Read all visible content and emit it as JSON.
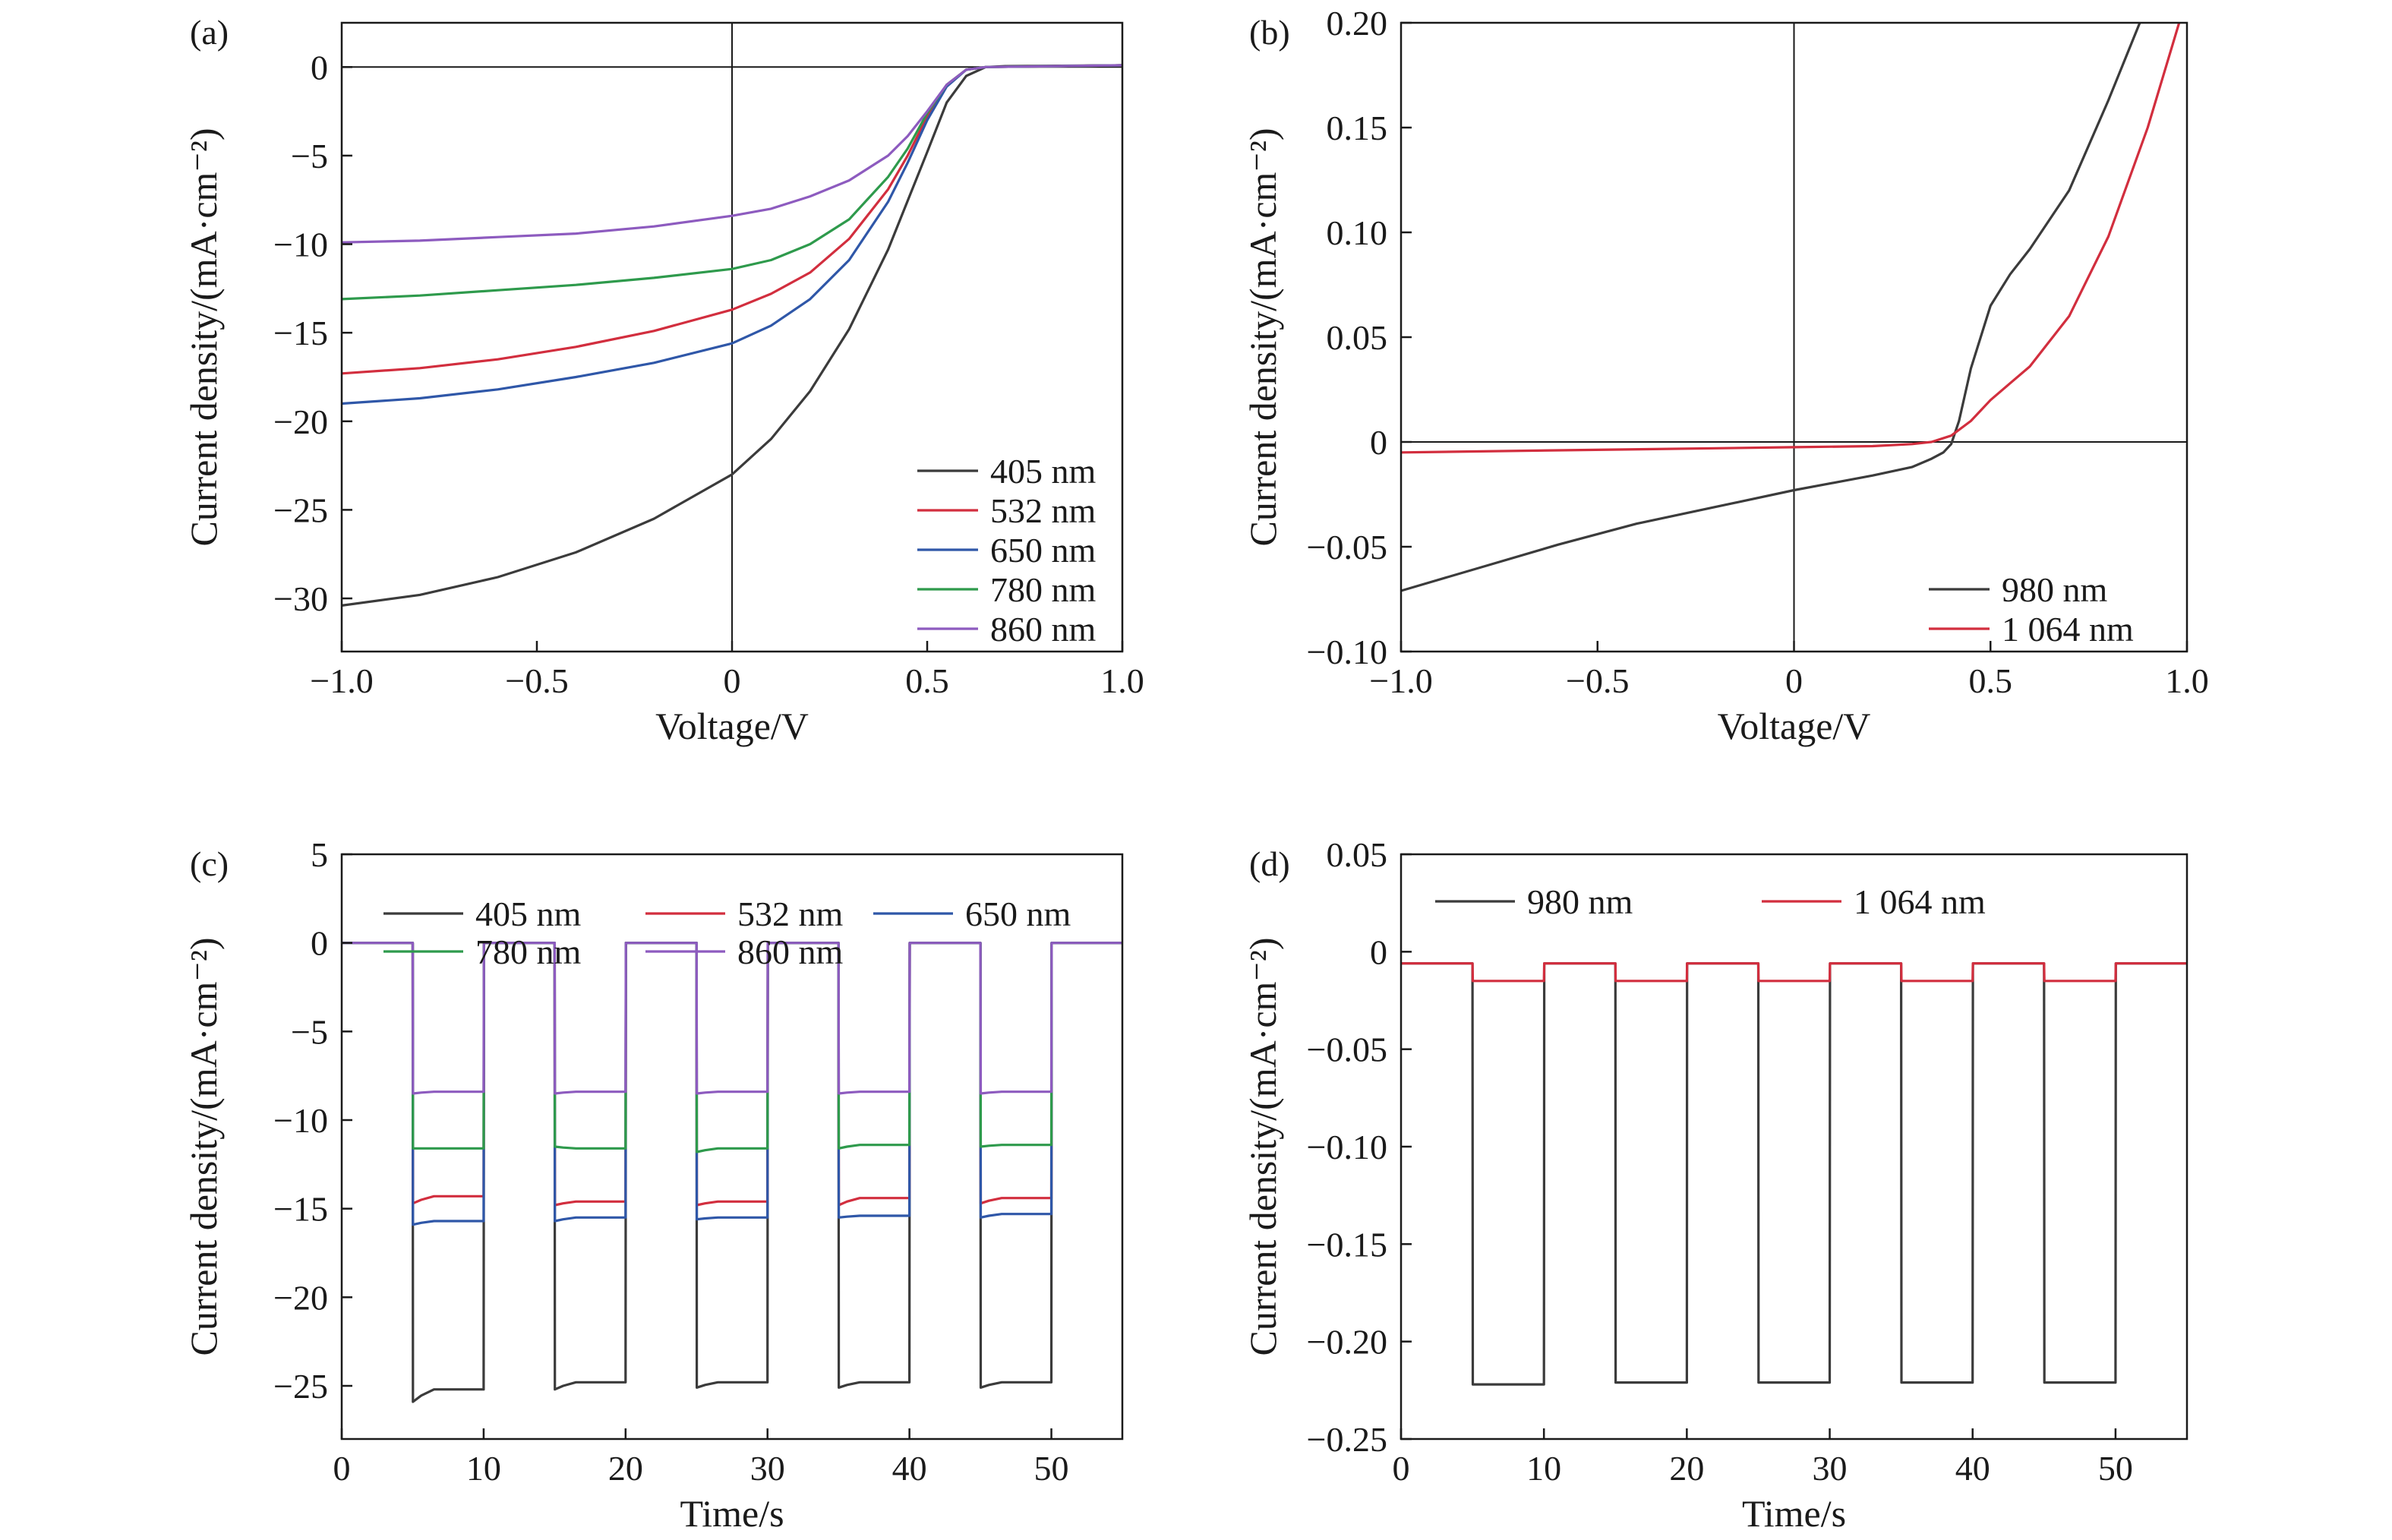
{
  "colors": {
    "405 nm": "#3b3b3b",
    "532 nm": "#d22e3e",
    "650 nm": "#2f57a8",
    "780 nm": "#2e9a4c",
    "860 nm": "#8d5bbf",
    "980 nm": "#3b3b3b",
    "1 064 nm": "#d22e3e"
  },
  "chart_data": [
    {
      "panel": "(a)",
      "type": "line",
      "xlabel": "Voltage/V",
      "ylabel": "Current density/(mA·cm⁻²)",
      "xlim": [
        -1.0,
        1.0
      ],
      "ylim": [
        -33,
        2.5
      ],
      "xticks": [
        -1.0,
        -0.5,
        0,
        0.5,
        1.0
      ],
      "xtick_labels": [
        "−1.0",
        "−0.5",
        "0",
        "0.5",
        "1.0"
      ],
      "yticks": [
        0,
        -5,
        -10,
        -15,
        -20,
        -25,
        -30
      ],
      "ytick_labels": [
        "0",
        "−5",
        "−10",
        "−15",
        "−20",
        "−25",
        "−30"
      ],
      "legend_position": "bottom-right",
      "legend_layout": "column",
      "series": [
        {
          "name": "405 nm",
          "x": [
            -1.0,
            -0.8,
            -0.6,
            -0.4,
            -0.2,
            0,
            0.1,
            0.2,
            0.3,
            0.4,
            0.5,
            0.55,
            0.6,
            0.65,
            0.7,
            1.0
          ],
          "y": [
            -30.4,
            -29.8,
            -28.8,
            -27.4,
            -25.5,
            -23.0,
            -21.0,
            -18.3,
            -14.8,
            -10.3,
            -4.8,
            -2.0,
            -0.5,
            0.0,
            0.05,
            0.1
          ]
        },
        {
          "name": "532 nm",
          "x": [
            -1.0,
            -0.8,
            -0.6,
            -0.4,
            -0.2,
            0,
            0.1,
            0.2,
            0.3,
            0.4,
            0.45,
            0.5,
            0.55,
            0.6,
            0.65,
            1.0
          ],
          "y": [
            -17.3,
            -17.0,
            -16.5,
            -15.8,
            -14.9,
            -13.7,
            -12.8,
            -11.6,
            -9.7,
            -6.9,
            -5.0,
            -2.8,
            -1.0,
            -0.15,
            0.0,
            0.1
          ]
        },
        {
          "name": "650 nm",
          "x": [
            -1.0,
            -0.8,
            -0.6,
            -0.4,
            -0.2,
            0,
            0.1,
            0.2,
            0.3,
            0.4,
            0.45,
            0.5,
            0.55,
            0.6,
            0.65,
            1.0
          ],
          "y": [
            -19.0,
            -18.7,
            -18.2,
            -17.5,
            -16.7,
            -15.6,
            -14.6,
            -13.1,
            -10.9,
            -7.6,
            -5.4,
            -3.0,
            -1.1,
            -0.15,
            0.0,
            0.1
          ]
        },
        {
          "name": "780 nm",
          "x": [
            -1.0,
            -0.8,
            -0.6,
            -0.4,
            -0.2,
            0,
            0.1,
            0.2,
            0.3,
            0.4,
            0.45,
            0.5,
            0.55,
            0.6,
            0.65,
            1.0
          ],
          "y": [
            -13.1,
            -12.9,
            -12.6,
            -12.3,
            -11.9,
            -11.4,
            -10.9,
            -10.0,
            -8.6,
            -6.2,
            -4.6,
            -2.6,
            -1.0,
            -0.15,
            0.0,
            0.1
          ]
        },
        {
          "name": "860 nm",
          "x": [
            -1.0,
            -0.8,
            -0.6,
            -0.4,
            -0.2,
            0,
            0.1,
            0.2,
            0.3,
            0.4,
            0.45,
            0.5,
            0.55,
            0.6,
            0.65,
            1.0
          ],
          "y": [
            -9.9,
            -9.8,
            -9.6,
            -9.4,
            -9.0,
            -8.4,
            -8.0,
            -7.3,
            -6.4,
            -5.0,
            -3.9,
            -2.5,
            -1.0,
            -0.15,
            0.0,
            0.1
          ]
        }
      ]
    },
    {
      "panel": "(b)",
      "type": "line",
      "xlabel": "Voltage/V",
      "ylabel": "Current density/(mA·cm⁻²)",
      "xlim": [
        -1.0,
        1.0
      ],
      "ylim": [
        -0.1,
        0.2
      ],
      "xticks": [
        -1.0,
        -0.5,
        0,
        0.5,
        1.0
      ],
      "xtick_labels": [
        "−1.0",
        "−0.5",
        "0",
        "0.5",
        "1.0"
      ],
      "yticks": [
        -0.1,
        -0.05,
        0,
        0.05,
        0.1,
        0.15,
        0.2
      ],
      "ytick_labels": [
        "−0.10",
        "−0.05",
        "0",
        "0.05",
        "0.10",
        "0.15",
        "0.20"
      ],
      "legend_position": "bottom-right",
      "legend_layout": "column",
      "series": [
        {
          "name": "980 nm",
          "x": [
            -1.0,
            -0.8,
            -0.6,
            -0.4,
            -0.2,
            0,
            0.2,
            0.3,
            0.35,
            0.38,
            0.4,
            0.42,
            0.45,
            0.5,
            0.55,
            0.6,
            0.7,
            0.8,
            0.88
          ],
          "y": [
            -0.071,
            -0.06,
            -0.049,
            -0.039,
            -0.031,
            -0.023,
            -0.016,
            -0.012,
            -0.008,
            -0.005,
            -0.001,
            0.01,
            0.035,
            0.065,
            0.08,
            0.092,
            0.12,
            0.163,
            0.2
          ]
        },
        {
          "name": "1 064 nm",
          "x": [
            -1.0,
            -0.6,
            -0.2,
            0,
            0.2,
            0.3,
            0.35,
            0.4,
            0.45,
            0.5,
            0.55,
            0.6,
            0.7,
            0.8,
            0.9,
            0.98
          ],
          "y": [
            -0.005,
            -0.004,
            -0.003,
            -0.0025,
            -0.002,
            -0.001,
            0.0,
            0.003,
            0.01,
            0.02,
            0.028,
            0.036,
            0.06,
            0.098,
            0.15,
            0.2
          ]
        }
      ]
    },
    {
      "panel": "(c)",
      "type": "line",
      "xlabel": "Time/s",
      "ylabel": "Current density/(mA·cm⁻²)",
      "xlim": [
        0,
        55
      ],
      "ylim": [
        -28,
        5
      ],
      "xticks": [
        0,
        10,
        20,
        30,
        40,
        50
      ],
      "xtick_labels": [
        "0",
        "10",
        "20",
        "30",
        "40",
        "50"
      ],
      "yticks": [
        5,
        0,
        -5,
        -10,
        -15,
        -20,
        -25
      ],
      "ytick_labels": [
        "5",
        "0",
        "−5",
        "−10",
        "−15",
        "−20",
        "−25"
      ],
      "legend_position": "top",
      "legend_layout": "grid3",
      "pulse_on_intervals": [
        [
          5,
          10
        ],
        [
          15,
          20
        ],
        [
          25,
          30
        ],
        [
          35,
          40
        ],
        [
          45,
          50
        ]
      ],
      "series": [
        {
          "name": "405 nm",
          "off_level": 0,
          "on_levels": [
            -25.2,
            -24.8,
            -24.8,
            -24.8,
            -24.8
          ],
          "on_start_levels": [
            -25.9,
            -25.2,
            -25.1,
            -25.1,
            -25.1
          ]
        },
        {
          "name": "532 nm",
          "off_level": 0,
          "on_levels": [
            -14.3,
            -14.6,
            -14.6,
            -14.4,
            -14.4
          ],
          "on_start_levels": [
            -14.7,
            -14.8,
            -14.8,
            -14.8,
            -14.7
          ]
        },
        {
          "name": "650 nm",
          "off_level": 0,
          "on_levels": [
            -15.7,
            -15.5,
            -15.5,
            -15.4,
            -15.3
          ],
          "on_start_levels": [
            -15.9,
            -15.7,
            -15.6,
            -15.5,
            -15.5
          ]
        },
        {
          "name": "780 nm",
          "off_level": 0,
          "on_levels": [
            -11.6,
            -11.6,
            -11.6,
            -11.4,
            -11.4
          ],
          "on_start_levels": [
            -11.6,
            -11.5,
            -11.8,
            -11.6,
            -11.5
          ]
        },
        {
          "name": "860 nm",
          "off_level": 0,
          "on_levels": [
            -8.4,
            -8.4,
            -8.4,
            -8.4,
            -8.4
          ],
          "on_start_levels": [
            -8.5,
            -8.5,
            -8.5,
            -8.5,
            -8.5
          ]
        }
      ]
    },
    {
      "panel": "(d)",
      "type": "line",
      "xlabel": "Time/s",
      "ylabel": "Current density/(mA·cm⁻²)",
      "xlim": [
        0,
        55
      ],
      "ylim": [
        -0.25,
        0.05
      ],
      "xticks": [
        0,
        10,
        20,
        30,
        40,
        50
      ],
      "xtick_labels": [
        "0",
        "10",
        "20",
        "30",
        "40",
        "50"
      ],
      "yticks": [
        0.05,
        0,
        -0.05,
        -0.1,
        -0.15,
        -0.2,
        -0.25
      ],
      "ytick_labels": [
        "0.05",
        "0",
        "−0.05",
        "−0.10",
        "−0.15",
        "−0.20",
        "−0.25"
      ],
      "legend_position": "top",
      "legend_layout": "row",
      "pulse_on_intervals": [
        [
          5,
          10
        ],
        [
          15,
          20
        ],
        [
          25,
          30
        ],
        [
          35,
          40
        ],
        [
          45,
          50
        ]
      ],
      "series": [
        {
          "name": "980 nm",
          "off_level": -0.006,
          "on_levels": [
            -0.222,
            -0.221,
            -0.221,
            -0.221,
            -0.221
          ],
          "on_start_levels": [
            -0.222,
            -0.221,
            -0.221,
            -0.221,
            -0.221
          ]
        },
        {
          "name": "1 064 nm",
          "off_level": -0.006,
          "on_levels": [
            -0.015,
            -0.015,
            -0.015,
            -0.015,
            -0.015
          ],
          "on_start_levels": [
            -0.015,
            -0.015,
            -0.015,
            -0.015,
            -0.015
          ]
        }
      ]
    }
  ]
}
